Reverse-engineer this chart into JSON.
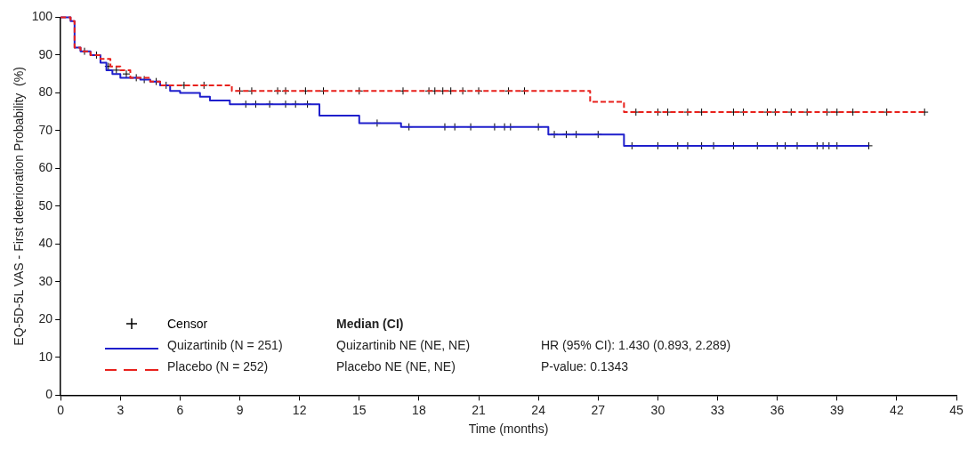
{
  "chart_data": {
    "type": "step",
    "xlabel": "Time (months)",
    "ylabel": "EQ-5D-5L VAS - First deterioration Probability  (%)",
    "xlim": [
      0,
      45
    ],
    "xticks": [
      0,
      3,
      6,
      9,
      12,
      15,
      18,
      21,
      24,
      27,
      30,
      33,
      36,
      39,
      42,
      45
    ],
    "ylim": [
      0,
      100
    ],
    "yticks": [
      0,
      10,
      20,
      30,
      40,
      50,
      60,
      70,
      80,
      90,
      100
    ],
    "grid": false,
    "legend": "bottom left",
    "series": [
      {
        "name": "Quizartinib (N = 251)",
        "type": "step",
        "color": "#1f1fcc",
        "line_style": "solid",
        "marker": "none",
        "x": [
          0,
          0.5,
          0.7,
          1,
          1.5,
          2,
          2.3,
          2.6,
          3,
          4,
          4.5,
          5,
          5.5,
          6,
          7,
          7.5,
          8.5,
          13,
          15,
          17.1,
          24.5,
          28.3,
          40.6
        ],
        "values": [
          100,
          99,
          92,
          91,
          90,
          88,
          86,
          85,
          84,
          83.5,
          83,
          82,
          80.5,
          80,
          79,
          78,
          77,
          74,
          72,
          71,
          69,
          66,
          66
        ]
      },
      {
        "name": "Placebo (N = 252)",
        "type": "step",
        "color": "#e8211c",
        "line_style": "dashed",
        "marker": "none",
        "x": [
          0,
          0.5,
          0.7,
          1,
          1.5,
          2,
          2.5,
          3,
          3.5,
          4.5,
          5,
          8.6,
          26.6,
          28.3,
          43.4
        ],
        "values": [
          100,
          99,
          92,
          91,
          90,
          89,
          87,
          86,
          84,
          83,
          82,
          80.5,
          77.6,
          74.9,
          74.9
        ]
      },
      {
        "name": "Censor",
        "type": "scatter",
        "color": "#000000",
        "marker": "cross",
        "x": [
          1.2,
          1.8,
          2.4,
          2.8,
          3.3,
          3.8,
          4.2,
          4.8,
          5.3,
          6.2,
          7.2,
          9,
          9.6,
          10.9,
          11.3,
          12.3,
          13.2,
          15,
          17.2,
          18.5,
          18.8,
          19.2,
          19.6,
          20.2,
          21,
          22.5,
          23.3,
          28.9,
          30,
          30.5,
          31.5,
          32.2,
          33.8,
          34.3,
          35.5,
          35.9,
          36.7,
          37.5,
          38.5,
          39,
          39.8,
          41.5,
          43.4,
          9.3,
          9.8,
          10.5,
          11.3,
          11.8,
          12.4,
          15.9,
          17.5,
          19.3,
          19.8,
          20.6,
          21.8,
          22.3,
          22.6,
          24,
          24.8,
          25.4,
          25.9,
          27,
          28.7,
          30,
          31,
          31.5,
          32.2,
          32.8,
          33.8,
          35,
          36,
          36.4,
          37,
          38,
          38.3,
          38.6,
          39,
          40.6
        ],
        "values": [
          91,
          90,
          87,
          86,
          85,
          84,
          83.5,
          83,
          82,
          82,
          82,
          80.5,
          80.5,
          80.5,
          80.5,
          80.5,
          80.5,
          80.5,
          80.5,
          80.5,
          80.5,
          80.5,
          80.5,
          80.5,
          80.5,
          80.5,
          80.5,
          74.9,
          74.9,
          74.9,
          74.9,
          74.9,
          74.9,
          74.9,
          74.9,
          74.9,
          74.9,
          74.9,
          74.9,
          74.9,
          74.9,
          74.9,
          74.9,
          77,
          77,
          77,
          77,
          77,
          77,
          72,
          71,
          71,
          71,
          71,
          71,
          71,
          71,
          71,
          69,
          69,
          69,
          69,
          66,
          66,
          66,
          66,
          66,
          66,
          66,
          66,
          66,
          66,
          66,
          66,
          66,
          66,
          66,
          66
        ]
      }
    ],
    "annotations": [
      "Median (CI)",
      "Quizartinib   NE (NE, NE)",
      "Placebo   NE (NE, NE)",
      "HR (95% CI): 1.430 (0.893, 2.289)",
      "P-value: 0.1343"
    ]
  }
}
